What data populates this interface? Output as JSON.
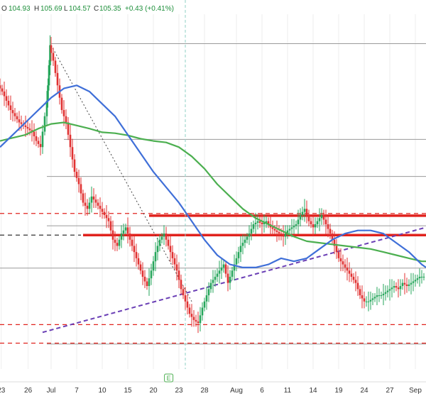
{
  "ohlc_header": {
    "open_label": "O",
    "open": "104.93",
    "high_label": "H",
    "high": "105.69",
    "low_label": "L",
    "low": "104.57",
    "close_label": "C",
    "close": "105.35",
    "change": "+0.43 (+0.41%)"
  },
  "colors": {
    "background": "#ffffff",
    "grid": "#eeeeee",
    "up_candle": "#26a65b",
    "down_candle": "#e03131",
    "ma_fast": "#3f6fd8",
    "ma_slow": "#4caf50",
    "trend_purple": "#6a3fb5",
    "level_red": "#e0231e",
    "level_gray": "#9a9a9a",
    "crosshair": "#8fd0c5",
    "header_text": "#1d8f3a"
  },
  "event_marker": {
    "label": "E",
    "x": 39.6
  },
  "chart_data": {
    "type": "candlestick",
    "x_axis": {
      "ticks": [
        {
          "x": 0.3,
          "label": "23"
        },
        {
          "x": 6.6,
          "label": "26"
        },
        {
          "x": 12,
          "label": "Jul"
        },
        {
          "x": 18,
          "label": "7"
        },
        {
          "x": 24,
          "label": "10"
        },
        {
          "x": 30,
          "label": "15"
        },
        {
          "x": 36,
          "label": "20"
        },
        {
          "x": 42,
          "label": "23"
        },
        {
          "x": 48,
          "label": "28"
        },
        {
          "x": 55.5,
          "label": "Aug"
        },
        {
          "x": 61.5,
          "label": "6"
        },
        {
          "x": 67.5,
          "label": "11"
        },
        {
          "x": 73.5,
          "label": "14"
        },
        {
          "x": 79.5,
          "label": "19"
        },
        {
          "x": 85.5,
          "label": "24"
        },
        {
          "x": 91.5,
          "label": "27"
        },
        {
          "x": 97.5,
          "label": "Sep"
        }
      ],
      "range": [
        0,
        100
      ]
    },
    "y_axis": {
      "range": [
        0,
        100
      ],
      "show": false
    },
    "price_series": [
      [
        0,
        80
      ],
      [
        1,
        78
      ],
      [
        2,
        75
      ],
      [
        3,
        72
      ],
      [
        4,
        70
      ],
      [
        5,
        68
      ],
      [
        6,
        67
      ],
      [
        7,
        66
      ],
      [
        8,
        65
      ],
      [
        9,
        62
      ],
      [
        10,
        60
      ],
      [
        11,
        70
      ],
      [
        11.5,
        80
      ],
      [
        12,
        93
      ],
      [
        13,
        88
      ],
      [
        14,
        80
      ],
      [
        15,
        72
      ],
      [
        16,
        68
      ],
      [
        17,
        60
      ],
      [
        18,
        52
      ],
      [
        19,
        48
      ],
      [
        20,
        42
      ],
      [
        21,
        40
      ],
      [
        22,
        44
      ],
      [
        23,
        42
      ],
      [
        24,
        40
      ],
      [
        25,
        38
      ],
      [
        26,
        36
      ],
      [
        27,
        30
      ],
      [
        28,
        28
      ],
      [
        29,
        32
      ],
      [
        30,
        34
      ],
      [
        31,
        30
      ],
      [
        32,
        26
      ],
      [
        33,
        22
      ],
      [
        34,
        18
      ],
      [
        35,
        15
      ],
      [
        36,
        20
      ],
      [
        37,
        26
      ],
      [
        38,
        30
      ],
      [
        39,
        32
      ],
      [
        40,
        28
      ],
      [
        41,
        24
      ],
      [
        42,
        20
      ],
      [
        43,
        14
      ],
      [
        44,
        10
      ],
      [
        45,
        6
      ],
      [
        46,
        4
      ],
      [
        47,
        3
      ],
      [
        48,
        8
      ],
      [
        49,
        12
      ],
      [
        50,
        16
      ],
      [
        51,
        18
      ],
      [
        52,
        20
      ],
      [
        53,
        22
      ],
      [
        54,
        16
      ],
      [
        55,
        20
      ],
      [
        56,
        24
      ],
      [
        57,
        28
      ],
      [
        58,
        30
      ],
      [
        59,
        32
      ],
      [
        60,
        35
      ],
      [
        61,
        36
      ],
      [
        62,
        35
      ],
      [
        63,
        36
      ],
      [
        64,
        34
      ],
      [
        65,
        33
      ],
      [
        66,
        32
      ],
      [
        67,
        31
      ],
      [
        68,
        33
      ],
      [
        69,
        34
      ],
      [
        70,
        35
      ],
      [
        71,
        38
      ],
      [
        72,
        40
      ],
      [
        73,
        36
      ],
      [
        74,
        34
      ],
      [
        75,
        36
      ],
      [
        76,
        38
      ],
      [
        77,
        35
      ],
      [
        78,
        32
      ],
      [
        79,
        28
      ],
      [
        80,
        24
      ],
      [
        81,
        22
      ],
      [
        82,
        20
      ],
      [
        83,
        18
      ],
      [
        84,
        16
      ],
      [
        85,
        12
      ],
      [
        86,
        10
      ],
      [
        87,
        10
      ],
      [
        88,
        11
      ],
      [
        89,
        12
      ],
      [
        90,
        12
      ],
      [
        91,
        13
      ],
      [
        92,
        14
      ],
      [
        93,
        15
      ],
      [
        94,
        14
      ],
      [
        95,
        16
      ],
      [
        96,
        15
      ],
      [
        97,
        16
      ],
      [
        98,
        17
      ],
      [
        99,
        18
      ],
      [
        100,
        18
      ]
    ],
    "ma_fast": [
      [
        0,
        60
      ],
      [
        3,
        64
      ],
      [
        6,
        68
      ],
      [
        9,
        72
      ],
      [
        12,
        76
      ],
      [
        15,
        79
      ],
      [
        18,
        80
      ],
      [
        21,
        78
      ],
      [
        24,
        74
      ],
      [
        27,
        70
      ],
      [
        30,
        64
      ],
      [
        33,
        58
      ],
      [
        36,
        52
      ],
      [
        39,
        47
      ],
      [
        42,
        42
      ],
      [
        45,
        36
      ],
      [
        48,
        30
      ],
      [
        51,
        25
      ],
      [
        54,
        22
      ],
      [
        57,
        21
      ],
      [
        60,
        21
      ],
      [
        63,
        22
      ],
      [
        66,
        24
      ],
      [
        69,
        23
      ],
      [
        72,
        24
      ],
      [
        75,
        27
      ],
      [
        78,
        30
      ],
      [
        81,
        32
      ],
      [
        84,
        33
      ],
      [
        87,
        33
      ],
      [
        90,
        32
      ],
      [
        93,
        29
      ],
      [
        96,
        26
      ],
      [
        99,
        22
      ],
      [
        100,
        21
      ]
    ],
    "ma_slow": [
      [
        0,
        62
      ],
      [
        3,
        63
      ],
      [
        6,
        64
      ],
      [
        9,
        66
      ],
      [
        12,
        67.5
      ],
      [
        15,
        68
      ],
      [
        18,
        67
      ],
      [
        21,
        66
      ],
      [
        24,
        64.8
      ],
      [
        27,
        64.5
      ],
      [
        30,
        63.8
      ],
      [
        33,
        62.7
      ],
      [
        36,
        62
      ],
      [
        39,
        61.5
      ],
      [
        42,
        60
      ],
      [
        45,
        57
      ],
      [
        48,
        53
      ],
      [
        51,
        48
      ],
      [
        54,
        44
      ],
      [
        57,
        40
      ],
      [
        60,
        37
      ],
      [
        63,
        35
      ],
      [
        66,
        33
      ],
      [
        69,
        31
      ],
      [
        72,
        29.5
      ],
      [
        75,
        29
      ],
      [
        78,
        28.5
      ],
      [
        81,
        28
      ],
      [
        84,
        27.5
      ],
      [
        87,
        27
      ],
      [
        90,
        26
      ],
      [
        93,
        25
      ],
      [
        96,
        24
      ],
      [
        99,
        23
      ],
      [
        100,
        23
      ]
    ],
    "purple_trend": [
      [
        10,
        0
      ],
      [
        100,
        34
      ]
    ],
    "down_trendline": [
      [
        12,
        93
      ],
      [
        45,
        10
      ]
    ],
    "red_solid_levels": [
      {
        "y": 37.8,
        "x_from": 35,
        "x_to": 100
      },
      {
        "y": 31.5,
        "x_from": 19.5,
        "x_to": 100
      }
    ],
    "red_dashed_levels": [
      38.5,
      2.5,
      -3.5
    ],
    "black_dashed_levels": [
      31.5
    ],
    "gray_levels": [
      {
        "y": 93.5,
        "x_from": 12
      },
      {
        "y": 62.5,
        "x_from": 15
      },
      {
        "y": 50.5,
        "x_from": 11
      },
      {
        "y": 34.5,
        "x_from": 11
      },
      {
        "y": 20.8,
        "x_from": 0
      },
      {
        "y": -3.8,
        "x_from": 11
      }
    ],
    "crosshair_x": 43.5
  }
}
